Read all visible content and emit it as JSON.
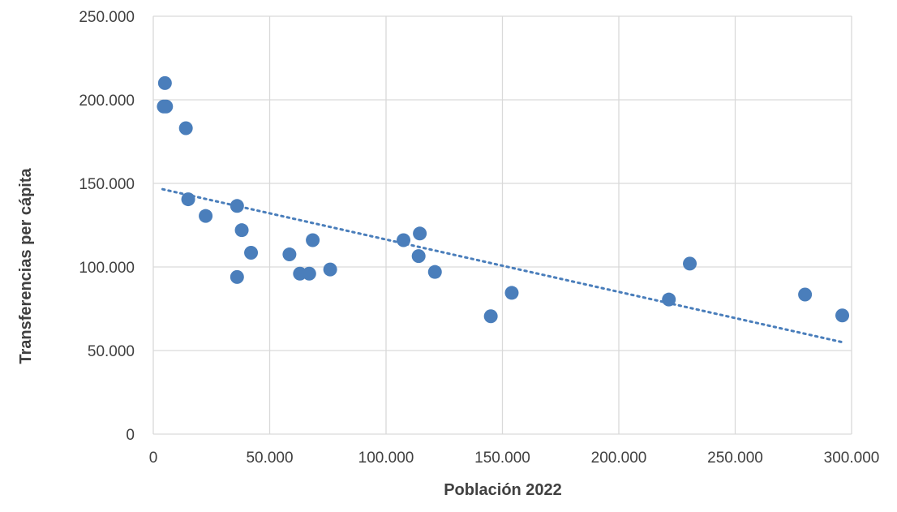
{
  "chart_data": {
    "type": "scatter",
    "title": "",
    "xlabel": "Población 2022",
    "ylabel": "Transferencias per cápita",
    "xlim": [
      0,
      300000
    ],
    "ylim": [
      0,
      250000
    ],
    "x_ticks": [
      0,
      50000,
      100000,
      150000,
      200000,
      250000,
      300000
    ],
    "x_tick_labels": [
      "0",
      "50.000",
      "100.000",
      "150.000",
      "200.000",
      "250.000",
      "300.000"
    ],
    "y_ticks": [
      0,
      50000,
      100000,
      150000,
      200000,
      250000
    ],
    "y_tick_labels": [
      "0",
      "50.000",
      "100.000",
      "150.000",
      "200.000",
      "250.000"
    ],
    "grid": true,
    "legend": "none",
    "colors": {
      "points": "#4a7ebb",
      "trendline": "#4a7ebb",
      "grid": "#d9d9d9"
    },
    "series": [
      {
        "points": [
          {
            "x": 5000,
            "y": 210000
          },
          {
            "x": 4500,
            "y": 196000
          },
          {
            "x": 5500,
            "y": 196000
          },
          {
            "x": 14000,
            "y": 183000
          },
          {
            "x": 15000,
            "y": 140500
          },
          {
            "x": 22500,
            "y": 130500
          },
          {
            "x": 36000,
            "y": 136500
          },
          {
            "x": 38000,
            "y": 122000
          },
          {
            "x": 42000,
            "y": 108500
          },
          {
            "x": 36000,
            "y": 94000
          },
          {
            "x": 58500,
            "y": 107500
          },
          {
            "x": 63000,
            "y": 96000
          },
          {
            "x": 67000,
            "y": 96000
          },
          {
            "x": 68500,
            "y": 116000
          },
          {
            "x": 76000,
            "y": 98500
          },
          {
            "x": 107500,
            "y": 116000
          },
          {
            "x": 114500,
            "y": 120000
          },
          {
            "x": 114000,
            "y": 106500
          },
          {
            "x": 121000,
            "y": 97000
          },
          {
            "x": 145000,
            "y": 70500
          },
          {
            "x": 154000,
            "y": 84500
          },
          {
            "x": 221500,
            "y": 80500
          },
          {
            "x": 230500,
            "y": 102000
          },
          {
            "x": 280000,
            "y": 83500
          },
          {
            "x": 296000,
            "y": 71000
          }
        ]
      }
    ],
    "trendline": {
      "type": "linear",
      "from": {
        "x": 4000,
        "y": 146500
      },
      "to": {
        "x": 296000,
        "y": 55000
      }
    }
  }
}
